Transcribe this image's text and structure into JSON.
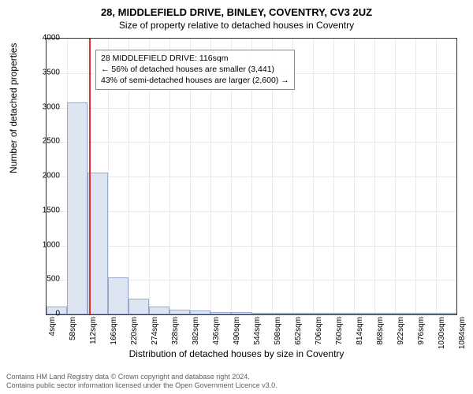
{
  "titles": {
    "main": "28, MIDDLEFIELD DRIVE, BINLEY, COVENTRY, CV3 2UZ",
    "sub": "Size of property relative to detached houses in Coventry"
  },
  "chart": {
    "type": "histogram",
    "bar_fill": "#dde4f2",
    "bar_stroke": "#9aa8c8",
    "grid_color": "#e8e8f0",
    "background_color": "#ffffff",
    "reference_line_color": "#e03030",
    "reference_value": 116,
    "xlabel": "Distribution of detached houses by size in Coventry",
    "ylabel": "Number of detached properties",
    "ylim": [
      0,
      4000
    ],
    "ytick_step": 500,
    "yticks": [
      0,
      500,
      1000,
      1500,
      2000,
      2500,
      3000,
      3500,
      4000
    ],
    "xticks": [
      4,
      58,
      112,
      166,
      220,
      274,
      328,
      382,
      436,
      490,
      544,
      598,
      652,
      706,
      760,
      814,
      868,
      922,
      976,
      1030,
      1084
    ],
    "xtick_unit": "sqm",
    "xlim": [
      4,
      1084
    ],
    "bar_width_sqm": 54,
    "bars": [
      {
        "x": 4,
        "y": 115
      },
      {
        "x": 58,
        "y": 3080
      },
      {
        "x": 112,
        "y": 2060
      },
      {
        "x": 166,
        "y": 540
      },
      {
        "x": 220,
        "y": 225
      },
      {
        "x": 274,
        "y": 120
      },
      {
        "x": 328,
        "y": 70
      },
      {
        "x": 382,
        "y": 55
      },
      {
        "x": 436,
        "y": 40
      },
      {
        "x": 490,
        "y": 35
      },
      {
        "x": 544,
        "y": 10
      },
      {
        "x": 598,
        "y": 8
      },
      {
        "x": 652,
        "y": 6
      },
      {
        "x": 706,
        "y": 5
      },
      {
        "x": 760,
        "y": 4
      },
      {
        "x": 814,
        "y": 3
      },
      {
        "x": 868,
        "y": 3
      },
      {
        "x": 922,
        "y": 2
      },
      {
        "x": 976,
        "y": 2
      },
      {
        "x": 1030,
        "y": 2
      }
    ],
    "annotation": {
      "line1": "28 MIDDLEFIELD DRIVE: 116sqm",
      "line2": "← 56% of detached houses are smaller (3,441)",
      "line3": "43% of semi-detached houses are larger (2,600) →",
      "box_border": "#888888",
      "font_size": 10.5
    }
  },
  "footer": {
    "line1": "Contains HM Land Registry data © Crown copyright and database right 2024.",
    "line2": "Contains public sector information licensed under the Open Government Licence v3.0."
  }
}
